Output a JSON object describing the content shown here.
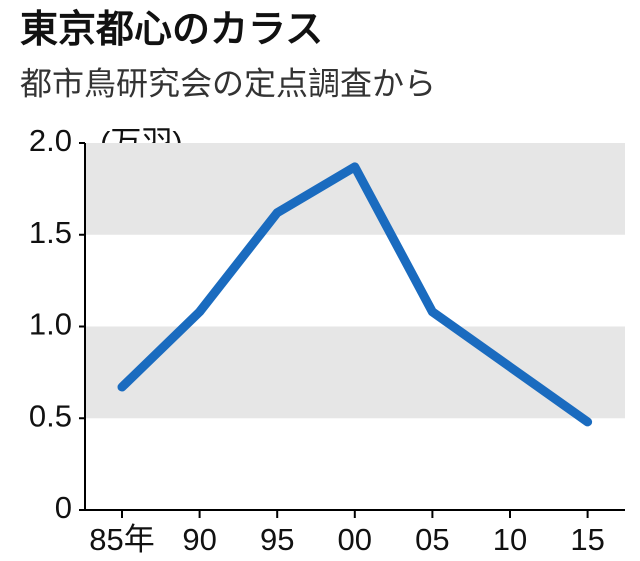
{
  "chart_data": {
    "type": "line",
    "title": "東京都心のカラス",
    "subtitle": "都市鳥研究会の定点調査から",
    "unit": "(万羽)",
    "categories": [
      "85年",
      "90",
      "95",
      "00",
      "05",
      "10",
      "15"
    ],
    "values": [
      0.67,
      1.08,
      1.62,
      1.87,
      1.08,
      0.78,
      0.48
    ],
    "color": "#1a6bbf",
    "ylim": [
      0,
      2
    ],
    "yticks": [
      0,
      0.5,
      {
        "value": 1,
        "label": "1.0"
      },
      1.5,
      {
        "value": 2,
        "label": "2.0"
      }
    ],
    "grid_bands": true
  }
}
